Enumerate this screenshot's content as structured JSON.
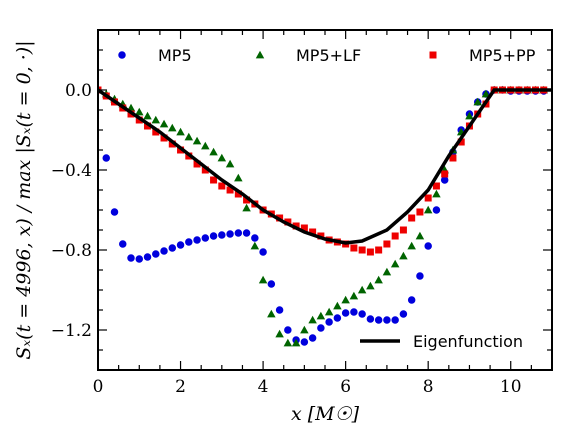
{
  "chart_data": {
    "type": "scatter",
    "xlabel": "x [M☉]",
    "ylabel": "Sₓ(t = 4996, x) / max |Sₓ(t = 0, ·)|",
    "xlim": [
      0,
      11
    ],
    "ylim": [
      -1.4,
      0.3
    ],
    "x_ticks": [
      0,
      2,
      4,
      6,
      8,
      10
    ],
    "x_tick_labels": [
      "0",
      "2",
      "4",
      "6",
      "8",
      "10"
    ],
    "y_ticks": [
      0.0,
      -0.4,
      -0.8,
      -1.2
    ],
    "y_tick_labels": [
      "0.0",
      "−0.4",
      "−0.8",
      "−1.2"
    ],
    "grid": false,
    "legend": {
      "top": [
        "MP5",
        "MP5+LF",
        "MP5+PP"
      ],
      "bottom": [
        "Eigenfunction"
      ]
    },
    "series": [
      {
        "name": "MP5",
        "marker": "circle",
        "color": "#0000dd",
        "points": [
          [
            0.2,
            -0.34
          ],
          [
            0.4,
            -0.61
          ],
          [
            0.6,
            -0.77
          ],
          [
            0.8,
            -0.84
          ],
          [
            1.0,
            -0.845
          ],
          [
            1.2,
            -0.835
          ],
          [
            1.4,
            -0.82
          ],
          [
            1.6,
            -0.805
          ],
          [
            1.8,
            -0.79
          ],
          [
            2.0,
            -0.775
          ],
          [
            2.2,
            -0.76
          ],
          [
            2.4,
            -0.75
          ],
          [
            2.6,
            -0.74
          ],
          [
            2.8,
            -0.73
          ],
          [
            3.0,
            -0.725
          ],
          [
            3.2,
            -0.72
          ],
          [
            3.4,
            -0.715
          ],
          [
            3.6,
            -0.715
          ],
          [
            3.8,
            -0.74
          ],
          [
            4.0,
            -0.81
          ],
          [
            4.2,
            -0.97
          ],
          [
            4.4,
            -1.1
          ],
          [
            4.6,
            -1.2
          ],
          [
            4.8,
            -1.25
          ],
          [
            5.0,
            -1.26
          ],
          [
            5.2,
            -1.24
          ],
          [
            5.4,
            -1.19
          ],
          [
            5.6,
            -1.16
          ],
          [
            5.8,
            -1.14
          ],
          [
            6.0,
            -1.115
          ],
          [
            6.2,
            -1.11
          ],
          [
            6.4,
            -1.12
          ],
          [
            6.6,
            -1.145
          ],
          [
            6.8,
            -1.15
          ],
          [
            7.0,
            -1.15
          ],
          [
            7.2,
            -1.15
          ],
          [
            7.4,
            -1.12
          ],
          [
            7.6,
            -1.05
          ],
          [
            7.8,
            -0.93
          ],
          [
            8.0,
            -0.78
          ],
          [
            8.2,
            -0.6
          ],
          [
            8.4,
            -0.45
          ],
          [
            8.6,
            -0.31
          ],
          [
            8.8,
            -0.2
          ],
          [
            9.0,
            -0.12
          ],
          [
            9.2,
            -0.06
          ],
          [
            9.4,
            -0.02
          ],
          [
            9.6,
            0.0
          ],
          [
            9.8,
            0.0
          ],
          [
            10.0,
            -0.005
          ],
          [
            10.2,
            -0.005
          ],
          [
            10.4,
            -0.005
          ],
          [
            10.6,
            -0.005
          ],
          [
            10.8,
            -0.005
          ]
        ]
      },
      {
        "name": "MP5+LF",
        "marker": "triangle",
        "color": "#006400",
        "points": [
          [
            0.0,
            0.0
          ],
          [
            0.2,
            -0.02
          ],
          [
            0.4,
            -0.045
          ],
          [
            0.6,
            -0.07
          ],
          [
            0.8,
            -0.09
          ],
          [
            1.0,
            -0.11
          ],
          [
            1.2,
            -0.13
          ],
          [
            1.4,
            -0.15
          ],
          [
            1.6,
            -0.17
          ],
          [
            1.8,
            -0.19
          ],
          [
            2.0,
            -0.21
          ],
          [
            2.2,
            -0.235
          ],
          [
            2.4,
            -0.255
          ],
          [
            2.6,
            -0.28
          ],
          [
            2.8,
            -0.31
          ],
          [
            3.0,
            -0.34
          ],
          [
            3.2,
            -0.37
          ],
          [
            3.4,
            -0.44
          ],
          [
            3.6,
            -0.59
          ],
          [
            3.8,
            -0.78
          ],
          [
            4.0,
            -0.95
          ],
          [
            4.2,
            -1.12
          ],
          [
            4.4,
            -1.22
          ],
          [
            4.6,
            -1.265
          ],
          [
            4.8,
            -1.265
          ],
          [
            5.0,
            -1.2
          ],
          [
            5.2,
            -1.15
          ],
          [
            5.4,
            -1.13
          ],
          [
            5.6,
            -1.11
          ],
          [
            5.8,
            -1.08
          ],
          [
            6.0,
            -1.05
          ],
          [
            6.2,
            -1.03
          ],
          [
            6.4,
            -1.0
          ],
          [
            6.6,
            -0.98
          ],
          [
            6.8,
            -0.95
          ],
          [
            7.0,
            -0.91
          ],
          [
            7.2,
            -0.87
          ],
          [
            7.4,
            -0.83
          ],
          [
            7.6,
            -0.78
          ],
          [
            7.8,
            -0.73
          ],
          [
            8.0,
            -0.6
          ],
          [
            8.2,
            -0.52
          ],
          [
            8.4,
            -0.4
          ],
          [
            8.6,
            -0.3
          ],
          [
            8.8,
            -0.21
          ],
          [
            9.0,
            -0.13
          ],
          [
            9.2,
            -0.06
          ],
          [
            9.4,
            -0.02
          ],
          [
            9.6,
            0.0
          ],
          [
            9.8,
            0.0
          ],
          [
            10.0,
            0.0
          ],
          [
            10.2,
            0.0
          ],
          [
            10.4,
            0.0
          ],
          [
            10.6,
            0.0
          ],
          [
            10.8,
            0.0
          ]
        ]
      },
      {
        "name": "MP5+PP",
        "marker": "square",
        "color": "#ee0000",
        "points": [
          [
            0.0,
            0.0
          ],
          [
            0.2,
            -0.03
          ],
          [
            0.4,
            -0.06
          ],
          [
            0.6,
            -0.09
          ],
          [
            0.8,
            -0.12
          ],
          [
            1.0,
            -0.15
          ],
          [
            1.2,
            -0.18
          ],
          [
            1.4,
            -0.21
          ],
          [
            1.6,
            -0.24
          ],
          [
            1.8,
            -0.27
          ],
          [
            2.0,
            -0.3
          ],
          [
            2.2,
            -0.33
          ],
          [
            2.4,
            -0.37
          ],
          [
            2.6,
            -0.4
          ],
          [
            2.8,
            -0.45
          ],
          [
            3.0,
            -0.48
          ],
          [
            3.2,
            -0.5
          ],
          [
            3.4,
            -0.52
          ],
          [
            3.6,
            -0.55
          ],
          [
            3.8,
            -0.57
          ],
          [
            4.0,
            -0.6
          ],
          [
            4.2,
            -0.62
          ],
          [
            4.4,
            -0.64
          ],
          [
            4.6,
            -0.66
          ],
          [
            4.8,
            -0.68
          ],
          [
            5.0,
            -0.69
          ],
          [
            5.2,
            -0.71
          ],
          [
            5.4,
            -0.73
          ],
          [
            5.6,
            -0.75
          ],
          [
            5.8,
            -0.76
          ],
          [
            6.0,
            -0.77
          ],
          [
            6.2,
            -0.79
          ],
          [
            6.4,
            -0.8
          ],
          [
            6.6,
            -0.81
          ],
          [
            6.8,
            -0.8
          ],
          [
            7.0,
            -0.77
          ],
          [
            7.2,
            -0.73
          ],
          [
            7.4,
            -0.7
          ],
          [
            7.6,
            -0.64
          ],
          [
            7.8,
            -0.61
          ],
          [
            8.0,
            -0.54
          ],
          [
            8.2,
            -0.48
          ],
          [
            8.4,
            -0.42
          ],
          [
            8.6,
            -0.34
          ],
          [
            8.8,
            -0.26
          ],
          [
            9.0,
            -0.18
          ],
          [
            9.2,
            -0.12
          ],
          [
            9.4,
            -0.07
          ],
          [
            9.6,
            0.0
          ],
          [
            9.8,
            0.0
          ],
          [
            10.0,
            0.0
          ],
          [
            10.2,
            0.0
          ],
          [
            10.4,
            0.0
          ],
          [
            10.6,
            0.0
          ],
          [
            10.8,
            0.0
          ]
        ]
      },
      {
        "name": "Eigenfunction",
        "marker": "line",
        "color": "#000000",
        "points": [
          [
            0.0,
            0.0
          ],
          [
            0.5,
            -0.07
          ],
          [
            1.0,
            -0.14
          ],
          [
            1.5,
            -0.21
          ],
          [
            2.0,
            -0.29
          ],
          [
            2.5,
            -0.37
          ],
          [
            3.0,
            -0.45
          ],
          [
            3.5,
            -0.52
          ],
          [
            4.0,
            -0.6
          ],
          [
            4.5,
            -0.66
          ],
          [
            5.0,
            -0.71
          ],
          [
            5.5,
            -0.745
          ],
          [
            6.0,
            -0.765
          ],
          [
            6.4,
            -0.755
          ],
          [
            7.0,
            -0.7
          ],
          [
            7.5,
            -0.61
          ],
          [
            8.0,
            -0.5
          ],
          [
            8.5,
            -0.33
          ],
          [
            9.0,
            -0.18
          ],
          [
            9.3,
            -0.09
          ],
          [
            9.6,
            0.0
          ],
          [
            11.0,
            0.0
          ]
        ]
      }
    ]
  }
}
